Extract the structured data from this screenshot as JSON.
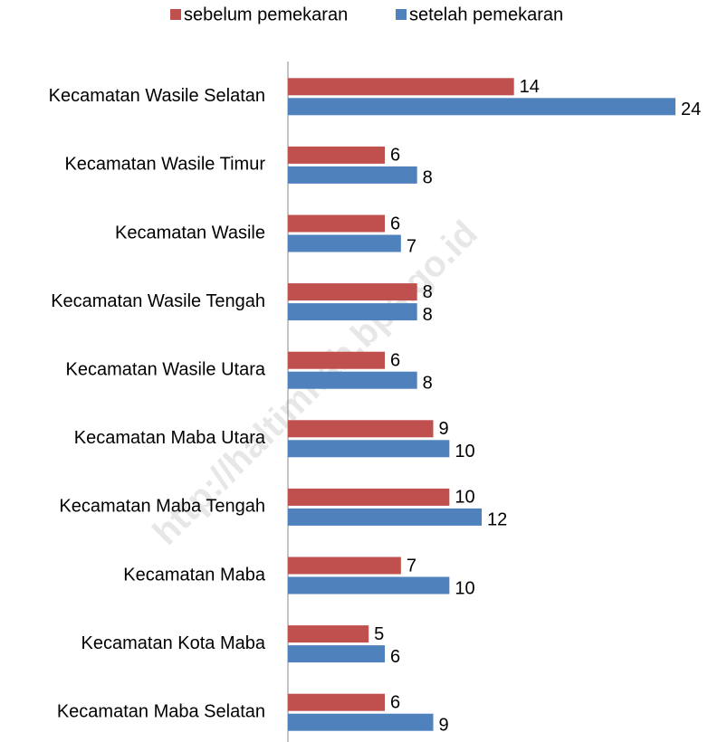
{
  "chart_data": {
    "type": "bar",
    "orientation": "horizontal",
    "categories": [
      "Kecamatan Wasile Selatan",
      "Kecamatan Wasile Timur",
      "Kecamatan Wasile",
      "Kecamatan Wasile Tengah",
      "Kecamatan Wasile Utara",
      "Kecamatan Maba Utara",
      "Kecamatan Maba Tengah",
      "Kecamatan Maba",
      "Kecamatan Kota Maba",
      "Kecamatan Maba Selatan"
    ],
    "series": [
      {
        "name": "sebelum pemekaran",
        "color": "#c0504d",
        "values": [
          14,
          6,
          6,
          8,
          6,
          9,
          10,
          7,
          5,
          6
        ]
      },
      {
        "name": "setelah pemekaran",
        "color": "#4f81bd",
        "values": [
          24,
          8,
          7,
          8,
          8,
          10,
          12,
          10,
          6,
          9
        ]
      }
    ],
    "xlim": [
      0,
      24
    ],
    "legend": "top",
    "watermark": "http://haltimkab.bps.go.id"
  }
}
